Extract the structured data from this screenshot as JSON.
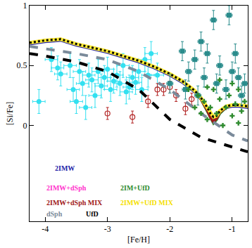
{
  "chart_data": {
    "type": "line",
    "x_label": "[Fe/H]",
    "y_label": "[Si/Fe]",
    "xlim": [
      -4.25,
      -0.75
    ],
    "ylim": [
      -0.8,
      1
    ],
    "xticks": [
      -4,
      -3,
      -2,
      -1
    ],
    "yticks": [
      0,
      0.5,
      1
    ],
    "grid": false,
    "series": [
      {
        "name": "2IMW",
        "color": "#2323a8",
        "line_style": "solid",
        "x": [
          -4.25,
          -4,
          -3.75,
          -3.5,
          -3.25,
          -3,
          -2.75,
          -2.5,
          -2.25,
          -2,
          -1.8,
          -1.6,
          -1.5,
          -1.4,
          -1.35,
          -1.3,
          -1.25,
          -1.2,
          -1.1,
          -1,
          -0.9,
          -0.75
        ],
        "values": [
          0.68,
          0.7,
          0.71,
          0.67,
          0.64,
          0.61,
          0.57,
          0.53,
          0.48,
          0.42,
          0.36,
          0.28,
          0.22,
          0.14,
          0.09,
          0.06,
          0.07,
          0.11,
          0.15,
          0.16,
          0.16,
          0.15
        ]
      },
      {
        "name": "2IMW+dSph",
        "color": "#ff33cc",
        "line_style": "solid",
        "x": [
          -4.25,
          -4,
          -3.75,
          -3.5,
          -3.25,
          -3,
          -2.75,
          -2.5,
          -2.25,
          -2,
          -1.8,
          -1.6,
          -1.5,
          -1.4,
          -1.35,
          -1.3,
          -1.25,
          -1.2,
          -1.1,
          -1,
          -0.9,
          -0.75
        ],
        "values": [
          0.69,
          0.71,
          0.72,
          0.68,
          0.65,
          0.62,
          0.58,
          0.54,
          0.49,
          0.43,
          0.37,
          0.29,
          0.23,
          0.15,
          0.1,
          0.07,
          0.08,
          0.12,
          0.16,
          0.17,
          0.17,
          0.16
        ]
      },
      {
        "name": "2IM+UfD",
        "color": "#2e8b2e",
        "line_style": "solid",
        "x": [
          -4.25,
          -4,
          -3.75,
          -3.5,
          -3.25,
          -3,
          -2.75,
          -2.5,
          -2.25,
          -2,
          -1.8,
          -1.6,
          -1.5,
          -1.4,
          -1.35,
          -1.3,
          -1.25,
          -1.2,
          -1.1,
          -1,
          -0.9,
          -0.75
        ],
        "values": [
          0.69,
          0.71,
          0.72,
          0.68,
          0.65,
          0.62,
          0.58,
          0.54,
          0.49,
          0.43,
          0.37,
          0.29,
          0.22,
          0.12,
          0.06,
          0.02,
          0.05,
          0.1,
          0.15,
          0.17,
          0.17,
          0.16
        ]
      },
      {
        "name": "2IMW+dSph MIX",
        "color": "#a01818",
        "line_style": "solid",
        "x": [
          -4.25,
          -4,
          -3.75,
          -3.5,
          -3.25,
          -3,
          -2.75,
          -2.5,
          -2.25,
          -2,
          -1.8,
          -1.6,
          -1.5,
          -1.4,
          -1.35,
          -1.3,
          -1.25,
          -1.2,
          -1.1,
          -1,
          -0.9,
          -0.75
        ],
        "values": [
          0.69,
          0.71,
          0.72,
          0.68,
          0.65,
          0.62,
          0.58,
          0.54,
          0.49,
          0.43,
          0.37,
          0.29,
          0.22,
          0.13,
          0.07,
          0.03,
          0.06,
          0.11,
          0.15,
          0.17,
          0.17,
          0.16
        ]
      },
      {
        "name": "2IMW+UfD MIX",
        "color": "#ffee33",
        "line_style": "dotted",
        "x": [
          -4.25,
          -4,
          -3.75,
          -3.5,
          -3.25,
          -3,
          -2.75,
          -2.5,
          -2.25,
          -2,
          -1.8,
          -1.6,
          -1.5,
          -1.4,
          -1.35,
          -1.3,
          -1.25,
          -1.2,
          -1.1,
          -1,
          -0.9,
          -0.75
        ],
        "values": [
          0.69,
          0.71,
          0.72,
          0.68,
          0.65,
          0.62,
          0.58,
          0.54,
          0.49,
          0.43,
          0.37,
          0.29,
          0.23,
          0.15,
          0.1,
          0.07,
          0.08,
          0.12,
          0.16,
          0.17,
          0.17,
          0.16
        ]
      },
      {
        "name": "dSph",
        "color": "#7a8a9a",
        "line_style": "dashed",
        "x": [
          -4.25,
          -4,
          -3.5,
          -3,
          -2.5,
          -2,
          -1.5,
          -1,
          -0.75
        ],
        "values": [
          0.66,
          0.64,
          0.6,
          0.55,
          0.45,
          0.3,
          0.1,
          -0.08,
          -0.13
        ]
      },
      {
        "name": "UfD",
        "color": "#000000",
        "line_style": "dashed",
        "x": [
          -4.25,
          -4,
          -3.5,
          -3,
          -2.5,
          -2.2,
          -2,
          -1.5,
          -1,
          -0.75
        ],
        "values": [
          0.6,
          0.58,
          0.53,
          0.45,
          0.3,
          0.15,
          0.05,
          -0.1,
          -0.18,
          -0.22
        ]
      },
      {
        "color": "#33e0f0",
        "marker": "circle",
        "x": [
          -4.1,
          -3.9,
          -3.8,
          -3.75,
          -3.6,
          -3.55,
          -3.45,
          -3.4,
          -3.3,
          -3.25,
          -3.2,
          -3.15,
          -3.1,
          -3.05,
          -3.0,
          -2.95,
          -2.9,
          -2.85,
          -2.8,
          -2.75,
          -2.7,
          -2.65,
          -2.6,
          -2.55,
          -2.5,
          -2.45,
          -2.4,
          -2.35,
          -2.3,
          -3.5,
          -3.35,
          -2.2
        ],
        "values": [
          0.2,
          0.55,
          0.48,
          0.43,
          0.5,
          0.3,
          0.45,
          0.35,
          0.42,
          0.38,
          0.25,
          0.45,
          0.33,
          0.4,
          0.47,
          0.3,
          0.37,
          0.42,
          0.35,
          0.5,
          0.28,
          0.32,
          0.4,
          0.36,
          0.45,
          0.3,
          0.55,
          0.42,
          0.6,
          0.2,
          0.15,
          0.42
        ],
        "x_error": [
          0.1,
          0.1,
          0.1,
          0.1,
          0.1,
          0.1,
          0.1,
          0.1,
          0.1,
          0.1,
          0.1,
          0.1,
          0.1,
          0.1,
          0.1,
          0.1,
          0.1,
          0.1,
          0.1,
          0.1,
          0.1,
          0.1,
          0.1,
          0.1,
          0.1,
          0.1,
          0.1,
          0.1,
          0.1,
          0.1,
          0.1,
          0.1
        ],
        "y_error": [
          0.1,
          0.1,
          0.1,
          0.1,
          0.1,
          0.1,
          0.1,
          0.1,
          0.1,
          0.1,
          0.1,
          0.1,
          0.1,
          0.1,
          0.1,
          0.1,
          0.1,
          0.1,
          0.1,
          0.1,
          0.1,
          0.1,
          0.1,
          0.1,
          0.1,
          0.1,
          0.1,
          0.1,
          0.1,
          0.1,
          0.1,
          0.1
        ]
      },
      {
        "color": "#2a8c8c",
        "marker": "square",
        "x": [
          -1.3,
          -1.05,
          -1.5,
          -1.6,
          -1.7,
          -1.8,
          -1.75,
          -2.0,
          -1.4,
          -1.2,
          -1.0,
          -0.9,
          -1.1,
          -0.85,
          -1.55,
          -0.95,
          -1.25,
          -1.45,
          -0.8
        ],
        "values": [
          0.88,
          0.92,
          0.7,
          0.55,
          0.45,
          0.62,
          0.3,
          0.35,
          0.6,
          0.5,
          0.45,
          0.4,
          0.3,
          0.25,
          0.25,
          0.6,
          0.35,
          0.4,
          0.35
        ],
        "x_error": [
          0.05,
          0.05,
          0.05,
          0.05,
          0.05,
          0.05,
          0.05,
          0.05,
          0.05,
          0.05,
          0.05,
          0.05,
          0.05,
          0.05,
          0.05,
          0.05,
          0.05,
          0.05,
          0.05
        ],
        "y_error": [
          0.08,
          0.08,
          0.08,
          0.08,
          0.08,
          0.08,
          0.08,
          0.08,
          0.08,
          0.08,
          0.08,
          0.08,
          0.08,
          0.08,
          0.08,
          0.08,
          0.08,
          0.08,
          0.08
        ]
      },
      {
        "color": "#2e8b2e",
        "marker": "cross",
        "x": [
          -1.7,
          -1.6,
          -1.55,
          -1.5,
          -1.45,
          -1.4,
          -1.35,
          -1.3,
          -1.25,
          -1.2,
          -1.15,
          -1.1,
          -1.05,
          -1.0,
          -0.95,
          -0.9,
          -0.85,
          -0.8,
          -1.2,
          -1.0,
          -1.4,
          -0.9
        ],
        "values": [
          0.3,
          0.15,
          0.25,
          0.1,
          0.2,
          0.05,
          0.15,
          0.3,
          0.1,
          0.22,
          0.0,
          0.15,
          0.25,
          0.08,
          0.18,
          0.3,
          0.12,
          0.2,
          0.38,
          0.35,
          0.32,
          0.02
        ]
      },
      {
        "color": "#b22222",
        "marker": "circle-open",
        "x": [
          -3.0,
          -2.6,
          -2.35,
          -2.2,
          -2.1,
          -2.0,
          -1.9,
          -1.75,
          -1.65
        ],
        "values": [
          0.1,
          0.07,
          0.2,
          0.3,
          0.3,
          0.32,
          0.25,
          0.14,
          0.22
        ],
        "y_error": [
          0.05,
          0.05,
          0.05,
          0.05,
          0.05,
          0.05,
          0.05,
          0.05,
          0.05
        ]
      }
    ]
  }
}
